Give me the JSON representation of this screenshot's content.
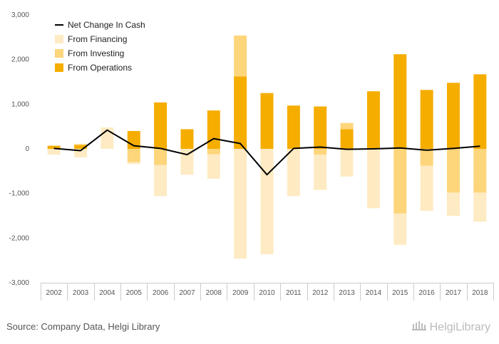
{
  "chart_data": {
    "type": "bar",
    "stacked": true,
    "categories": [
      "2002",
      "2003",
      "2004",
      "2005",
      "2006",
      "2007",
      "2008",
      "2009",
      "2010",
      "2011",
      "2012",
      "2013",
      "2014",
      "2015",
      "2016",
      "2017",
      "2018"
    ],
    "series": [
      {
        "name": "From Operations",
        "kind": "bar",
        "color": "#F5AD00",
        "values": [
          70,
          80,
          0,
          400,
          1040,
          440,
          860,
          1620,
          1250,
          970,
          950,
          440,
          1290,
          2120,
          1320,
          1480,
          1670
        ]
      },
      {
        "name": "From Investing",
        "kind": "bar",
        "color": "#FDD57A",
        "values": [
          0,
          30,
          0,
          -300,
          -360,
          0,
          -120,
          920,
          0,
          0,
          -130,
          140,
          0,
          -1450,
          -380,
          -980,
          -980
        ]
      },
      {
        "name": "From Financing",
        "kind": "bar",
        "color": "#FEEBC3",
        "values": [
          -130,
          -190,
          480,
          -40,
          -700,
          -580,
          -550,
          -2460,
          -2360,
          -1060,
          -790,
          -620,
          -1330,
          -700,
          -1010,
          -520,
          -650
        ]
      },
      {
        "name": "Net Change In Cash",
        "kind": "line",
        "color": "#000000",
        "values": [
          10,
          -40,
          420,
          70,
          10,
          -130,
          230,
          120,
          -580,
          10,
          40,
          -10,
          0,
          20,
          -30,
          10,
          60
        ]
      }
    ],
    "yticks": [
      -3000,
      -2000,
      -1000,
      0,
      1000,
      2000,
      3000
    ],
    "ytick_labels": [
      "-3,000",
      "-2,000",
      "-1,000",
      "0",
      "1,000",
      "2,000",
      "3,000"
    ],
    "ylim": [
      -3000,
      3000
    ],
    "grid": false,
    "legend_position": "top-left",
    "legend_order": [
      "Net Change In Cash",
      "From Financing",
      "From Investing",
      "From Operations"
    ]
  },
  "footer": {
    "source": "Source: Company Data, Helgi Library",
    "brand": "HelgiLibrary"
  }
}
